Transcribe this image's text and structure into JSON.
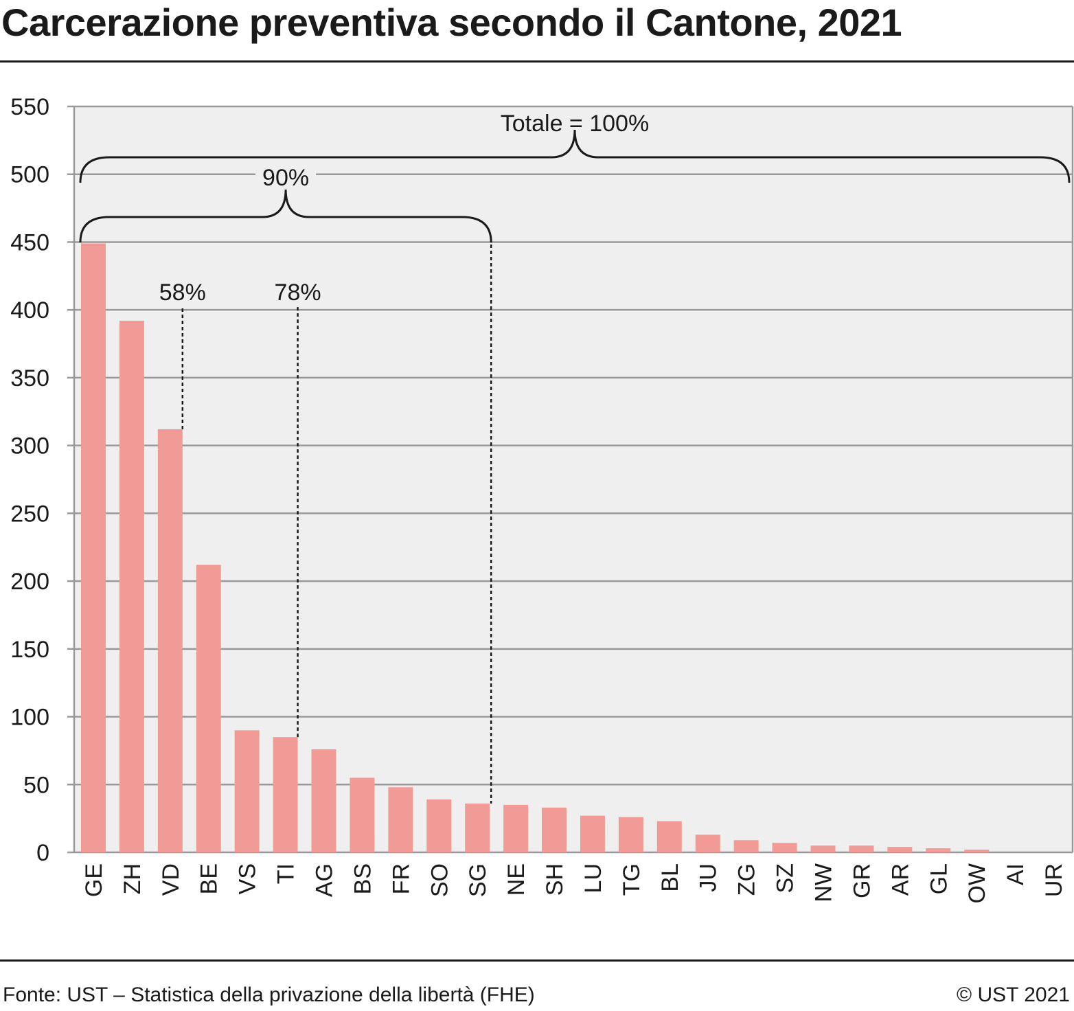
{
  "title": "Carcerazione preventiva secondo il Cantone, 2021",
  "source": "Fonte: UST – Statistica della privazione della libertà (FHE)",
  "copyright": "© UST 2021",
  "colors": {
    "bar": "#f29b96",
    "plot_bg": "#efefef",
    "grid": "#999999",
    "text": "#1a1a1a"
  },
  "chart_data": {
    "type": "bar",
    "categories": [
      "GE",
      "ZH",
      "VD",
      "BE",
      "VS",
      "TI",
      "AG",
      "BS",
      "FR",
      "SO",
      "SG",
      "NE",
      "SH",
      "LU",
      "TG",
      "BL",
      "JU",
      "ZG",
      "SZ",
      "NW",
      "GR",
      "AR",
      "GL",
      "OW",
      "AI",
      "UR"
    ],
    "values": [
      449,
      392,
      312,
      212,
      90,
      85,
      76,
      55,
      48,
      39,
      36,
      35,
      33,
      27,
      26,
      23,
      13,
      9,
      7,
      5,
      5,
      4,
      3,
      2,
      0,
      0
    ],
    "ylim": [
      0,
      550
    ],
    "yticks": [
      0,
      50,
      100,
      150,
      200,
      250,
      300,
      350,
      400,
      450,
      500,
      550
    ],
    "xlabel": "",
    "ylabel": "",
    "grid": true,
    "annotations": {
      "cumulative_markers": [
        {
          "label": "58%",
          "after_category": "VD"
        },
        {
          "label": "78%",
          "after_category": "TI"
        }
      ],
      "braces": [
        {
          "label": "90%",
          "from_category": "GE",
          "to_category": "SG",
          "level": 0.9
        },
        {
          "label": "Totale = 100%",
          "from_category": "GE",
          "to_category": "UR",
          "level": 1.0
        }
      ]
    }
  }
}
